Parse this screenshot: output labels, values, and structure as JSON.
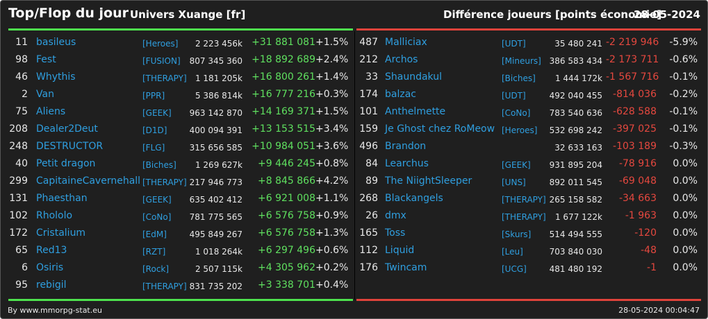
{
  "header": {
    "title": "Top/Flop du jour",
    "univers": "Univers Xuange [fr]",
    "metric": "Différence joueurs [points économie]",
    "date": "28-05-2024"
  },
  "colors": {
    "background": "#1f1f1f",
    "top_accent": "#4ee34e",
    "flop_accent": "#e0433b",
    "name_link": "#2f9fe0",
    "positive": "#5fe05f",
    "negative": "#e5483f"
  },
  "top": [
    {
      "rank": "11",
      "name": "basileus",
      "guild": "[Heroes]",
      "score": "2 223 456k",
      "diff": "+31 881 081",
      "pct": "+1.5%"
    },
    {
      "rank": "98",
      "name": "Fest",
      "guild": "[FUSION]",
      "score": "807 345 360",
      "diff": "+18 892 689",
      "pct": "+2.4%"
    },
    {
      "rank": "46",
      "name": "Whythis",
      "guild": "[THERAPY]",
      "score": "1 181 205k",
      "diff": "+16 800 261",
      "pct": "+1.4%"
    },
    {
      "rank": "2",
      "name": "Van",
      "guild": "[PPR]",
      "score": "5 386 814k",
      "diff": "+16 777 216",
      "pct": "+0.3%"
    },
    {
      "rank": "75",
      "name": "Aliens",
      "guild": "[GEEK]",
      "score": "963 142 870",
      "diff": "+14 169 371",
      "pct": "+1.5%"
    },
    {
      "rank": "208",
      "name": "Dealer2Deut",
      "guild": "[D1D]",
      "score": "400 094 391",
      "diff": "+13 153 515",
      "pct": "+3.4%"
    },
    {
      "rank": "248",
      "name": "DESTRUCTOR",
      "guild": "[FLG]",
      "score": "315 656 585",
      "diff": "+10 984 051",
      "pct": "+3.6%"
    },
    {
      "rank": "40",
      "name": "Petit dragon",
      "guild": "[Biches]",
      "score": "1 269 627k",
      "diff": "+9 446 245",
      "pct": "+0.8%"
    },
    {
      "rank": "299",
      "name": "CapitaineCavernehall",
      "guild": "[THERAPY]",
      "score": "217 946 773",
      "diff": "+8 845 866",
      "pct": "+4.2%"
    },
    {
      "rank": "131",
      "name": "Phaesthan",
      "guild": "[GEEK]",
      "score": "635 402 412",
      "diff": "+6 921 008",
      "pct": "+1.1%"
    },
    {
      "rank": "102",
      "name": "Rhololo",
      "guild": "[CoNo]",
      "score": "781 775 565",
      "diff": "+6 576 758",
      "pct": "+0.9%"
    },
    {
      "rank": "172",
      "name": "Cristalium",
      "guild": "[EdM]",
      "score": "495 849 267",
      "diff": "+6 576 758",
      "pct": "+1.3%"
    },
    {
      "rank": "65",
      "name": "Red13",
      "guild": "[RZT]",
      "score": "1 018 264k",
      "diff": "+6 297 496",
      "pct": "+0.6%"
    },
    {
      "rank": "6",
      "name": "Osiris",
      "guild": "[Rock]",
      "score": "2 507 115k",
      "diff": "+4 305 962",
      "pct": "+0.2%"
    },
    {
      "rank": "95",
      "name": "rebigil",
      "guild": "[THERAPY]",
      "score": "831 735 202",
      "diff": "+3 338 701",
      "pct": "+0.4%"
    }
  ],
  "flop": [
    {
      "rank": "487",
      "name": "Malliciax",
      "guild": "[UDT]",
      "score": "35 480 241",
      "diff": "-2 219 946",
      "pct": "-5.9%"
    },
    {
      "rank": "212",
      "name": "Archos",
      "guild": "[Mineurs]",
      "score": "386 583 434",
      "diff": "-2 173 711",
      "pct": "-0.6%"
    },
    {
      "rank": "33",
      "name": "Shaundakul",
      "guild": "[Biches]",
      "score": "1 444 172k",
      "diff": "-1 567 716",
      "pct": "-0.1%"
    },
    {
      "rank": "174",
      "name": "balzac",
      "guild": "[UDT]",
      "score": "492 040 455",
      "diff": "-814 036",
      "pct": "-0.2%"
    },
    {
      "rank": "101",
      "name": "Anthelmette",
      "guild": "[CoNo]",
      "score": "783 540 636",
      "diff": "-628 588",
      "pct": "-0.1%"
    },
    {
      "rank": "159",
      "name": "Je Ghost chez RoMeow",
      "guild": "[Heroes]",
      "score": "532 698 242",
      "diff": "-397 025",
      "pct": "-0.1%"
    },
    {
      "rank": "496",
      "name": "Brandon",
      "guild": "",
      "score": "32 633 163",
      "diff": "-103 189",
      "pct": "-0.3%"
    },
    {
      "rank": "84",
      "name": "Learchus",
      "guild": "[GEEK]",
      "score": "931 895 204",
      "diff": "-78 916",
      "pct": "0.0%"
    },
    {
      "rank": "89",
      "name": "The NiightSleeper",
      "guild": "[UNS]",
      "score": "892 011 545",
      "diff": "-69 048",
      "pct": "0.0%"
    },
    {
      "rank": "268",
      "name": "Blackangels",
      "guild": "[THERAPY]",
      "score": "265 158 582",
      "diff": "-34 663",
      "pct": "0.0%"
    },
    {
      "rank": "26",
      "name": "dmx",
      "guild": "[THERAPY]",
      "score": "1 677 122k",
      "diff": "-1 963",
      "pct": "0.0%"
    },
    {
      "rank": "165",
      "name": "Toss",
      "guild": "[Skurs]",
      "score": "514 494 555",
      "diff": "-120",
      "pct": "0.0%"
    },
    {
      "rank": "112",
      "name": "Liquid",
      "guild": "[Leu]",
      "score": "703 840 030",
      "diff": "-48",
      "pct": "0.0%"
    },
    {
      "rank": "176",
      "name": "Twincam",
      "guild": "[UCG]",
      "score": "481 480 192",
      "diff": "-1",
      "pct": "0.0%"
    }
  ],
  "footer": {
    "credit": "By www.mmorpg-stat.eu",
    "timestamp": "28-05-2024 00:04:47"
  }
}
